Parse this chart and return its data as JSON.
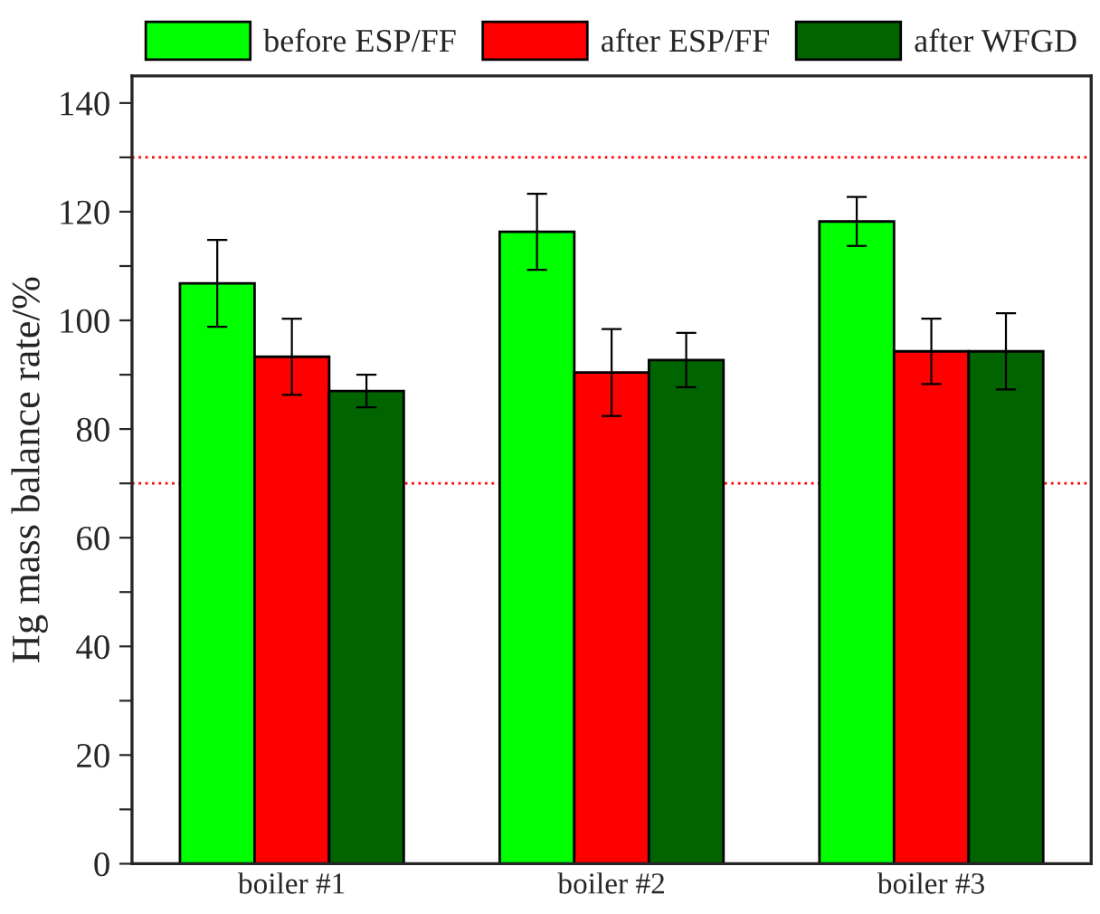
{
  "chart_data": {
    "type": "bar",
    "ylabel": "Hg mass balance rate/%",
    "categories": [
      "boiler #1",
      "boiler #2",
      "boiler #3"
    ],
    "series": [
      {
        "name": "before ESP/FF",
        "color": "#00ff00",
        "values": [
          106.8,
          116.3,
          118.2
        ],
        "errors": [
          8,
          7,
          4.5
        ]
      },
      {
        "name": "after ESP/FF",
        "color": "#ff0000",
        "values": [
          93.3,
          90.4,
          94.3
        ],
        "errors": [
          7,
          8,
          6
        ]
      },
      {
        "name": "after WFGD",
        "color": "#006400",
        "values": [
          87,
          92.7,
          94.3
        ],
        "errors": [
          3,
          5,
          7
        ]
      }
    ],
    "ylim": [
      0,
      145
    ],
    "yticks": [
      0,
      {
        "value": 10,
        "label": null
      },
      20,
      {
        "value": 30,
        "label": null
      },
      40,
      {
        "value": 50,
        "label": null
      },
      60,
      {
        "value": 70,
        "label": null
      },
      80,
      {
        "value": 90,
        "label": null
      },
      100,
      {
        "value": 110,
        "label": null
      },
      120,
      {
        "value": 130,
        "label": null
      },
      140
    ],
    "ref_lines": [
      {
        "axis": "y",
        "value": 130,
        "color": "#ff0000",
        "line_style": "dotted"
      },
      {
        "axis": "y",
        "value": 70,
        "color": "#ff0000",
        "line_style": "dotted"
      }
    ],
    "legend": "top",
    "grid": false
  }
}
